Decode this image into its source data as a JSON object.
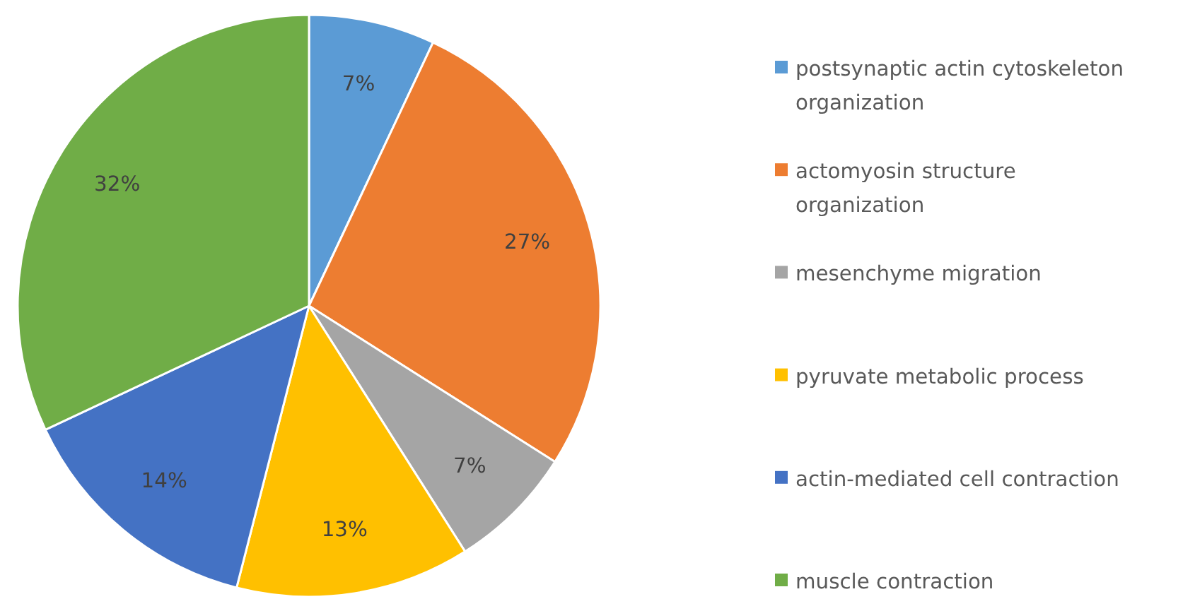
{
  "chart_data": {
    "type": "pie",
    "categories": [
      "postsynaptic actin cytoskeleton organization",
      "actomyosin structure organization",
      "mesenchyme migration",
      "pyruvate metabolic process",
      "actin-mediated cell contraction",
      "muscle contraction"
    ],
    "values": [
      7,
      27,
      7,
      13,
      14,
      32
    ],
    "colors": [
      "#5b9bd5",
      "#ed7d31",
      "#a5a5a5",
      "#ffc000",
      "#4472c4",
      "#70ad47"
    ],
    "value_labels": [
      "7%",
      "27%",
      "7%",
      "13%",
      "14%",
      "32%"
    ],
    "legend": "right"
  }
}
